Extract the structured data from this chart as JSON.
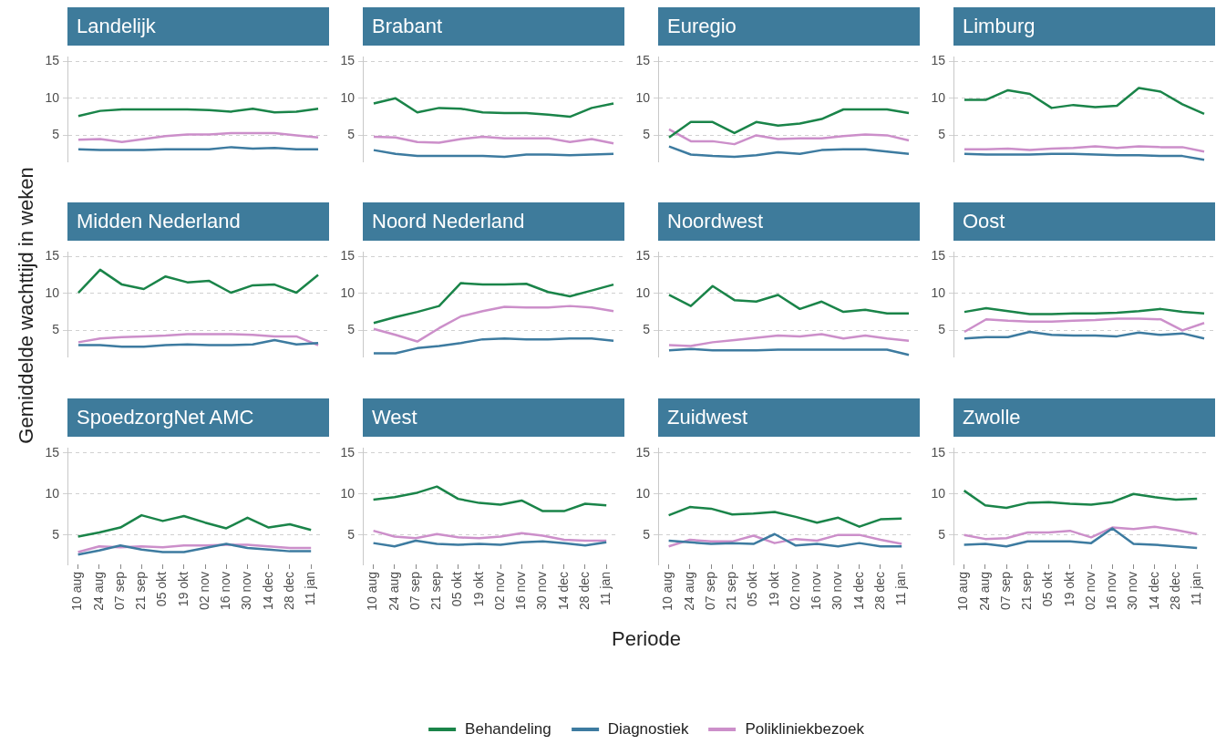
{
  "chart_data": [
    {
      "type": "line",
      "title": "Landelijk",
      "legend": "bottom",
      "tick_labels": "y",
      "grid": "y",
      "ylim": [
        1.4,
        15.6
      ],
      "yticks": [
        5,
        10,
        15
      ],
      "categories": [
        null,
        null,
        null,
        null,
        null,
        null,
        null,
        null,
        null,
        null,
        null,
        null
      ],
      "series": [
        {
          "name": "Behandeling",
          "color": "#1a8449",
          "values": [
            7.6,
            8.3,
            8.5,
            8.5,
            8.5,
            8.5,
            8.4,
            8.2,
            8.6,
            8.1,
            8.2,
            8.6
          ]
        },
        {
          "name": "Diagnostiek",
          "color": "#3d7ba0",
          "values": [
            3.1,
            3.0,
            3.0,
            3.0,
            3.1,
            3.1,
            3.1,
            3.4,
            3.2,
            3.3,
            3.1,
            3.1
          ]
        },
        {
          "name": "Polikliniekbezoek",
          "color": "#cc8fca",
          "values": [
            4.4,
            4.5,
            4.1,
            4.5,
            4.9,
            5.1,
            5.1,
            5.3,
            5.3,
            5.3,
            5.0,
            4.7
          ]
        }
      ]
    },
    {
      "type": "line",
      "title": "Brabant",
      "tick_labels": "y",
      "grid": "y",
      "ylim": [
        1.4,
        15.6
      ],
      "yticks": [
        5,
        10,
        15
      ],
      "categories": [
        null,
        null,
        null,
        null,
        null,
        null,
        null,
        null,
        null,
        null,
        null,
        null
      ],
      "series": [
        {
          "color": "#1a8449",
          "values": [
            9.3,
            10.0,
            8.1,
            8.7,
            8.6,
            8.1,
            8.0,
            8.0,
            7.8,
            7.5,
            8.7,
            9.3
          ]
        },
        {
          "color": "#3d7ba0",
          "values": [
            3.0,
            2.5,
            2.2,
            2.2,
            2.2,
            2.2,
            2.1,
            2.4,
            2.4,
            2.3,
            2.4,
            2.5
          ]
        },
        {
          "color": "#cc8fca",
          "values": [
            4.8,
            4.7,
            4.1,
            4.0,
            4.5,
            4.8,
            4.6,
            4.6,
            4.6,
            4.1,
            4.5,
            3.9
          ]
        }
      ]
    },
    {
      "type": "line",
      "title": "Euregio",
      "tick_labels": "y",
      "grid": "y",
      "ylim": [
        1.4,
        15.6
      ],
      "yticks": [
        5,
        10,
        15
      ],
      "categories": [
        null,
        null,
        null,
        null,
        null,
        null,
        null,
        null,
        null,
        null,
        null,
        null
      ],
      "series": [
        {
          "color": "#1a8449",
          "values": [
            4.7,
            6.8,
            6.8,
            5.3,
            6.8,
            6.3,
            6.6,
            7.2,
            8.5,
            8.5,
            8.5,
            8.0
          ]
        },
        {
          "color": "#3d7ba0",
          "values": [
            3.5,
            2.4,
            2.2,
            2.1,
            2.3,
            2.7,
            2.5,
            3.0,
            3.1,
            3.1,
            2.8,
            2.5
          ]
        },
        {
          "color": "#cc8fca",
          "values": [
            5.8,
            4.2,
            4.2,
            3.8,
            5.0,
            4.5,
            4.6,
            4.6,
            4.9,
            5.1,
            5.0,
            4.3
          ]
        }
      ]
    },
    {
      "type": "line",
      "title": "Limburg",
      "tick_labels": "y",
      "grid": "y",
      "ylim": [
        1.4,
        15.6
      ],
      "yticks": [
        5,
        10,
        15
      ],
      "categories": [
        null,
        null,
        null,
        null,
        null,
        null,
        null,
        null,
        null,
        null,
        null,
        null
      ],
      "series": [
        {
          "color": "#1a8449",
          "values": [
            9.8,
            9.8,
            11.1,
            10.6,
            8.7,
            9.1,
            8.8,
            9.0,
            11.4,
            10.9,
            9.2,
            7.9
          ]
        },
        {
          "color": "#3d7ba0",
          "values": [
            2.5,
            2.4,
            2.4,
            2.4,
            2.5,
            2.5,
            2.4,
            2.3,
            2.3,
            2.2,
            2.2,
            1.7
          ]
        },
        {
          "color": "#cc8fca",
          "values": [
            3.1,
            3.1,
            3.2,
            3.0,
            3.2,
            3.3,
            3.5,
            3.3,
            3.5,
            3.4,
            3.4,
            2.8
          ]
        }
      ]
    },
    {
      "type": "line",
      "title": "Midden Nederland",
      "ylabel": "Gemiddelde wachttijd in weken",
      "tick_labels": "y",
      "grid": "y",
      "ylim": [
        1.4,
        15.6
      ],
      "yticks": [
        5,
        10,
        15
      ],
      "categories": [
        null,
        null,
        null,
        null,
        null,
        null,
        null,
        null,
        null,
        null,
        null,
        null
      ],
      "series": [
        {
          "color": "#1a8449",
          "values": [
            10.1,
            13.2,
            11.2,
            10.6,
            12.3,
            11.5,
            11.7,
            10.1,
            11.1,
            11.2,
            10.1,
            12.5
          ]
        },
        {
          "color": "#3d7ba0",
          "values": [
            3.0,
            3.0,
            2.8,
            2.8,
            3.0,
            3.1,
            3.0,
            3.0,
            3.1,
            3.7,
            3.1,
            3.3
          ]
        },
        {
          "color": "#cc8fca",
          "values": [
            3.4,
            3.9,
            4.1,
            4.2,
            4.3,
            4.5,
            4.5,
            4.5,
            4.4,
            4.2,
            4.2,
            3.0
          ]
        }
      ]
    },
    {
      "type": "line",
      "title": "Noord Nederland",
      "tick_labels": "y",
      "grid": "y",
      "ylim": [
        1.4,
        15.6
      ],
      "yticks": [
        5,
        10,
        15
      ],
      "categories": [
        null,
        null,
        null,
        null,
        null,
        null,
        null,
        null,
        null,
        null,
        null,
        null
      ],
      "series": [
        {
          "color": "#1a8449",
          "values": [
            6.0,
            6.8,
            7.5,
            8.3,
            11.4,
            11.2,
            11.2,
            11.3,
            10.2,
            9.6,
            10.4,
            11.2
          ]
        },
        {
          "color": "#3d7ba0",
          "values": [
            1.9,
            1.9,
            2.6,
            2.9,
            3.3,
            3.8,
            3.9,
            3.8,
            3.8,
            3.9,
            3.9,
            3.6
          ]
        },
        {
          "color": "#cc8fca",
          "values": [
            5.2,
            4.4,
            3.5,
            5.3,
            6.9,
            7.6,
            8.2,
            8.1,
            8.1,
            8.3,
            8.1,
            7.6
          ]
        }
      ]
    },
    {
      "type": "line",
      "title": "Noordwest",
      "tick_labels": "y",
      "grid": "y",
      "ylim": [
        1.4,
        15.6
      ],
      "yticks": [
        5,
        10,
        15
      ],
      "categories": [
        null,
        null,
        null,
        null,
        null,
        null,
        null,
        null,
        null,
        null,
        null,
        null
      ],
      "series": [
        {
          "color": "#1a8449",
          "values": [
            9.8,
            8.3,
            11.0,
            9.1,
            8.9,
            9.8,
            7.9,
            8.9,
            7.5,
            7.8,
            7.3,
            7.3
          ]
        },
        {
          "color": "#3d7ba0",
          "values": [
            2.3,
            2.5,
            2.3,
            2.3,
            2.3,
            2.4,
            2.4,
            2.4,
            2.4,
            2.4,
            2.4,
            1.7
          ]
        },
        {
          "color": "#cc8fca",
          "values": [
            3.0,
            2.9,
            3.4,
            3.7,
            4.0,
            4.3,
            4.2,
            4.5,
            3.9,
            4.3,
            3.9,
            3.6
          ]
        }
      ]
    },
    {
      "type": "line",
      "title": "Oost",
      "tick_labels": "y",
      "grid": "y",
      "ylim": [
        1.4,
        15.6
      ],
      "yticks": [
        5,
        10,
        15
      ],
      "categories": [
        null,
        null,
        null,
        null,
        null,
        null,
        null,
        null,
        null,
        null,
        null,
        null
      ],
      "series": [
        {
          "color": "#1a8449",
          "values": [
            7.5,
            8.0,
            7.6,
            7.2,
            7.2,
            7.3,
            7.3,
            7.4,
            7.6,
            7.9,
            7.5,
            7.3
          ]
        },
        {
          "color": "#3d7ba0",
          "values": [
            3.9,
            4.1,
            4.1,
            4.8,
            4.4,
            4.3,
            4.3,
            4.2,
            4.7,
            4.4,
            4.6,
            3.9
          ]
        },
        {
          "color": "#cc8fca",
          "values": [
            4.8,
            6.5,
            6.3,
            6.2,
            6.2,
            6.3,
            6.4,
            6.6,
            6.6,
            6.5,
            5.0,
            6.0
          ]
        }
      ]
    },
    {
      "type": "line",
      "title": "SpoedzorgNet AMC",
      "grid": "y",
      "ylim": [
        1.4,
        15.6
      ],
      "yticks": [
        5,
        10,
        15
      ],
      "categories": [
        "10 aug",
        "24 aug",
        "07 sep",
        "21 sep",
        "05 okt",
        "19 okt",
        "02 nov",
        "16 nov",
        "30 nov",
        "14 dec",
        "28 dec",
        "11 jan"
      ],
      "series": [
        {
          "color": "#1a8449",
          "values": [
            4.8,
            5.3,
            5.9,
            7.4,
            6.7,
            7.3,
            6.5,
            5.8,
            7.1,
            5.9,
            6.3,
            5.6
          ]
        },
        {
          "color": "#3d7ba0",
          "values": [
            2.6,
            3.1,
            3.7,
            3.2,
            2.9,
            2.9,
            3.4,
            3.9,
            3.4,
            3.2,
            3.0,
            3.0
          ]
        },
        {
          "color": "#cc8fca",
          "values": [
            2.9,
            3.6,
            3.5,
            3.6,
            3.5,
            3.7,
            3.7,
            3.8,
            3.8,
            3.6,
            3.4,
            3.4
          ]
        }
      ]
    },
    {
      "type": "line",
      "title": "West",
      "xlabel": "Periode",
      "grid": "y",
      "ylim": [
        1.4,
        15.6
      ],
      "yticks": [
        5,
        10,
        15
      ],
      "categories": [
        "10 aug",
        "24 aug",
        "07 sep",
        "21 sep",
        "05 okt",
        "19 okt",
        "02 nov",
        "16 nov",
        "30 nov",
        "14 dec",
        "28 dec",
        "11 jan"
      ],
      "series": [
        {
          "color": "#1a8449",
          "values": [
            9.3,
            9.6,
            10.1,
            10.9,
            9.4,
            8.9,
            8.7,
            9.2,
            7.9,
            7.9,
            8.8,
            8.6
          ]
        },
        {
          "color": "#3d7ba0",
          "values": [
            4.0,
            3.6,
            4.3,
            3.9,
            3.8,
            3.9,
            3.8,
            4.1,
            4.2,
            4.0,
            3.7,
            4.1
          ]
        },
        {
          "color": "#cc8fca",
          "values": [
            5.5,
            4.8,
            4.6,
            5.1,
            4.7,
            4.6,
            4.8,
            5.2,
            4.9,
            4.4,
            4.3,
            4.3
          ]
        }
      ]
    },
    {
      "type": "line",
      "title": "Zuidwest",
      "grid": "y",
      "ylim": [
        1.4,
        15.6
      ],
      "yticks": [
        5,
        10,
        15
      ],
      "categories": [
        "10 aug",
        "24 aug",
        "07 sep",
        "21 sep",
        "05 okt",
        "19 okt",
        "02 nov",
        "16 nov",
        "30 nov",
        "14 dec",
        "28 dec",
        "11 jan"
      ],
      "series": [
        {
          "color": "#1a8449",
          "values": [
            7.4,
            8.4,
            8.2,
            7.5,
            7.6,
            7.8,
            7.2,
            6.5,
            7.1,
            6.0,
            6.9,
            7.0
          ]
        },
        {
          "color": "#3d7ba0",
          "values": [
            4.3,
            4.1,
            3.9,
            4.0,
            3.9,
            5.1,
            3.7,
            3.9,
            3.6,
            4.0,
            3.6,
            3.6
          ]
        },
        {
          "color": "#cc8fca",
          "values": [
            3.6,
            4.4,
            4.2,
            4.2,
            4.9,
            4.0,
            4.5,
            4.3,
            5.0,
            5.0,
            4.4,
            3.9
          ]
        }
      ]
    },
    {
      "type": "line",
      "title": "Zwolle",
      "grid": "y",
      "ylim": [
        1.4,
        15.6
      ],
      "yticks": [
        5,
        10,
        15
      ],
      "categories": [
        "10 aug",
        "24 aug",
        "07 sep",
        "21 sep",
        "05 okt",
        "19 okt",
        "02 nov",
        "16 nov",
        "30 nov",
        "14 dec",
        "28 dec",
        "11 jan"
      ],
      "series": [
        {
          "color": "#1a8449",
          "values": [
            10.4,
            8.6,
            8.3,
            8.9,
            9.0,
            8.8,
            8.7,
            9.0,
            10.0,
            9.6,
            9.3,
            9.4
          ]
        },
        {
          "color": "#3d7ba0",
          "values": [
            3.8,
            3.9,
            3.6,
            4.2,
            4.2,
            4.2,
            4.0,
            5.8,
            3.9,
            3.8,
            3.6,
            3.4
          ]
        },
        {
          "color": "#cc8fca",
          "values": [
            5.0,
            4.5,
            4.6,
            5.3,
            5.3,
            5.5,
            4.7,
            5.9,
            5.7,
            6.0,
            5.6,
            5.1
          ]
        }
      ]
    }
  ]
}
